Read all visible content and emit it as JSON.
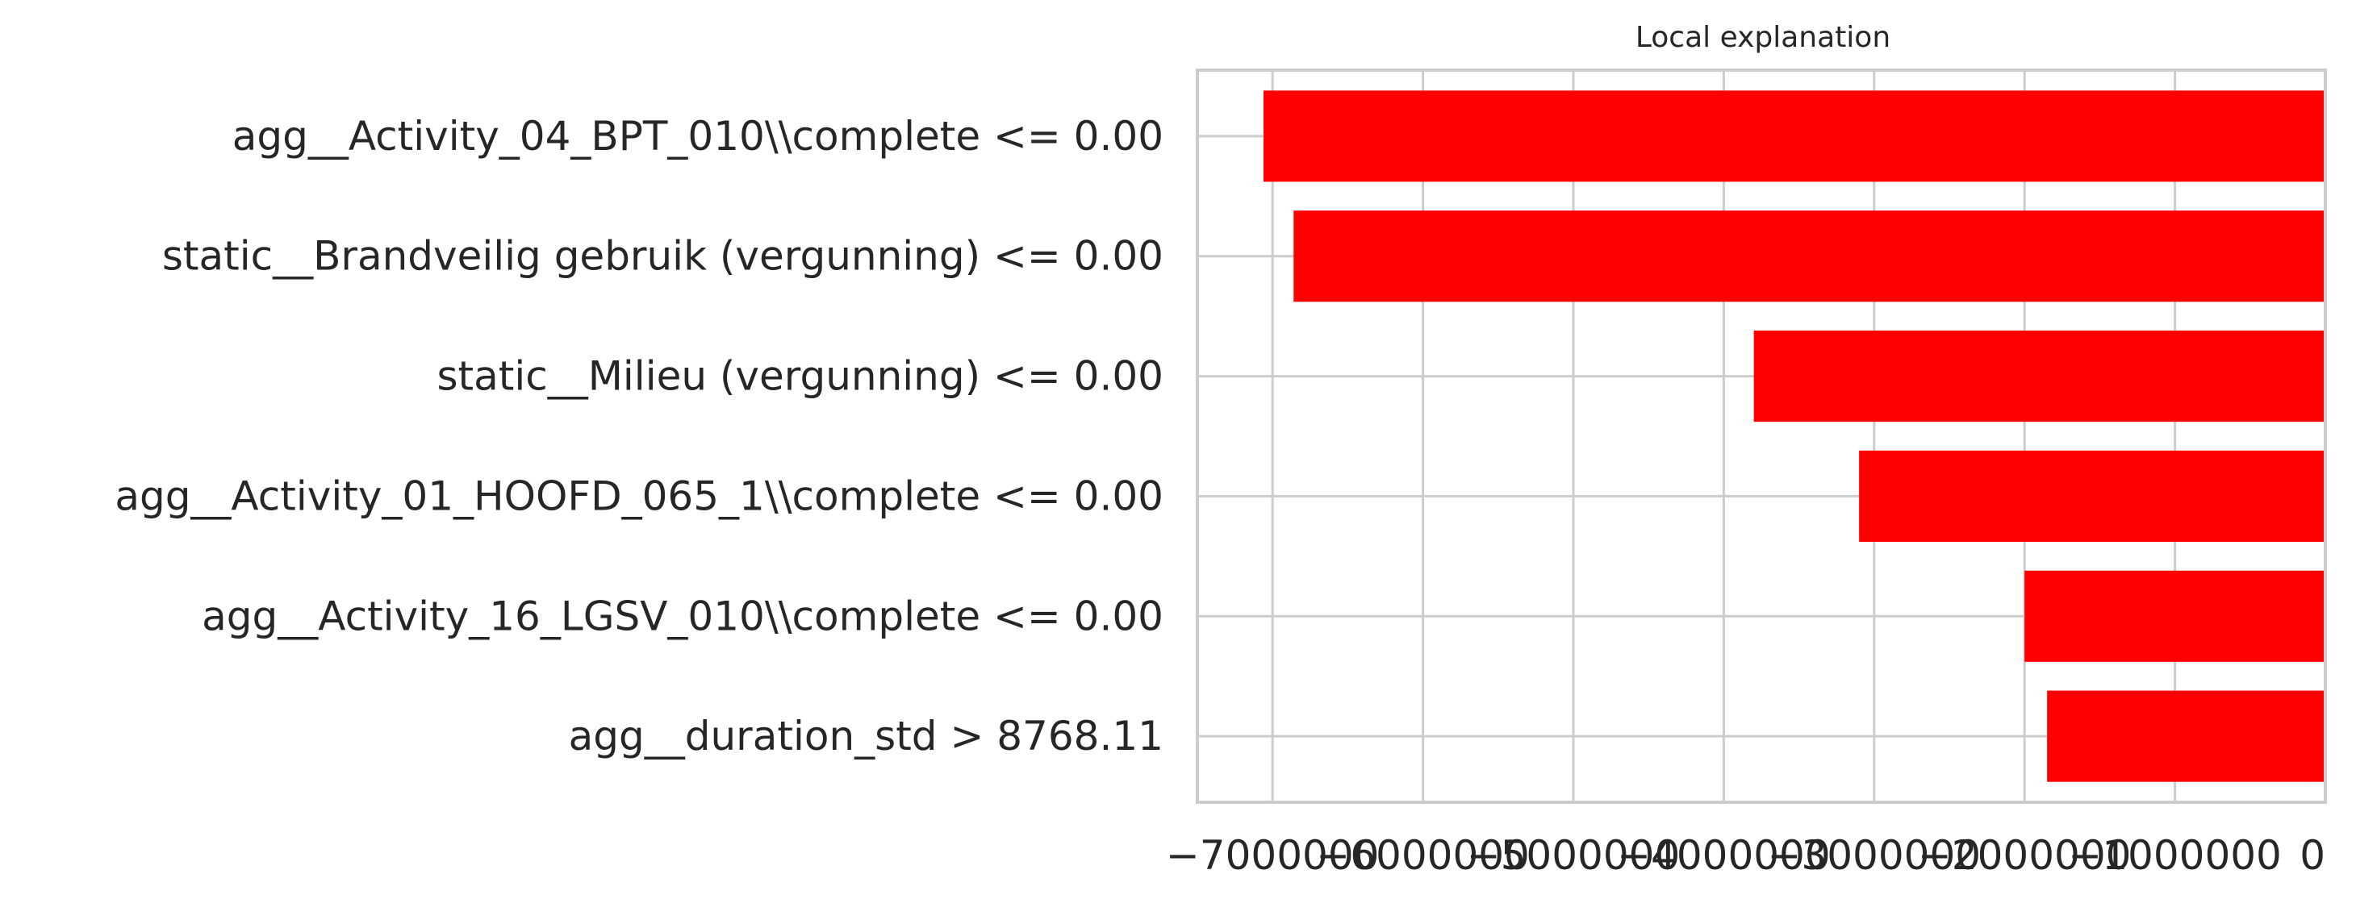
{
  "chart_data": {
    "type": "bar",
    "orientation": "horizontal",
    "title": "Local explanation",
    "xlabel": "",
    "ylabel": "",
    "grid": true,
    "xlim": [
      -7500000,
      0
    ],
    "bar_color": "#ff0000",
    "categories": [
      "agg__Activity_04_BPT_010\\\\complete <= 0.00",
      "static__Brandveilig gebruik (vergunning) <= 0.00",
      "static__Milieu (vergunning) <= 0.00",
      "agg__Activity_01_HOOFD_065_1\\\\complete <= 0.00",
      "agg__Activity_16_LGSV_010\\\\complete <= 0.00",
      "agg__duration_std > 8768.11"
    ],
    "values": [
      -7060000,
      -6860000,
      -3800000,
      -3100000,
      -2000000,
      -1850000
    ],
    "xticks": [
      -7000000,
      -6000000,
      -5000000,
      -4000000,
      -3000000,
      -2000000,
      -1000000,
      0
    ],
    "xtick_labels": [
      "−7000000",
      "−6000000",
      "−5000000",
      "−4000000",
      "−3000000",
      "−2000000",
      "−1000000",
      "0"
    ]
  }
}
